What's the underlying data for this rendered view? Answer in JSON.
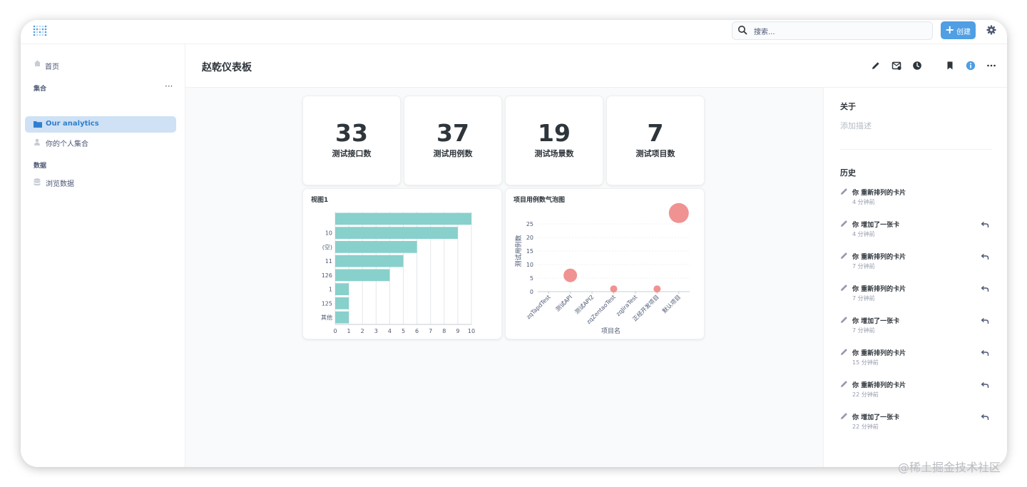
{
  "app": {
    "accent": "#509ee3"
  },
  "topbar": {
    "search_placeholder": "搜索...",
    "new_label": "创建"
  },
  "sidebar": {
    "home": "首页",
    "collections_heading": "集合",
    "collections": [
      {
        "label": "Our analytics",
        "icon": "folder-icon",
        "active": true
      },
      {
        "label": "你的个人集合",
        "icon": "person-icon",
        "active": false
      }
    ],
    "data_heading": "数据",
    "data_items": [
      {
        "label": "浏览数据",
        "icon": "database-icon"
      }
    ]
  },
  "dashboard": {
    "title": "赵乾仪表板"
  },
  "scalars": [
    {
      "value": "33",
      "label": "测试接口数"
    },
    {
      "value": "37",
      "label": "测试用例数"
    },
    {
      "value": "19",
      "label": "测试场景数"
    },
    {
      "value": "7",
      "label": "测试项目数"
    }
  ],
  "chart_data": [
    {
      "type": "bar",
      "orientation": "horizontal",
      "title": "视图1",
      "categories": [
        "",
        "10",
        "(空)",
        "11",
        "126",
        "1",
        "125",
        "其他"
      ],
      "values": [
        10,
        9,
        6,
        5,
        4,
        1,
        1,
        1
      ],
      "xlim": [
        0,
        10
      ],
      "x_ticks": [
        "0",
        "1",
        "2",
        "3",
        "4",
        "5",
        "6",
        "7",
        "8",
        "9",
        "10"
      ],
      "color": "#88d0cc",
      "grid": true
    },
    {
      "type": "scatter",
      "title": "项目用例数气泡图",
      "xlabel": "项目名",
      "ylabel": "测试用例数",
      "categories": [
        "zqTapdTest",
        "测试API",
        "测试API2",
        "zqZentaoTest",
        "zqJiraTest",
        "正经开发项目",
        "默认项目"
      ],
      "points": [
        {
          "x": "测试API",
          "y": 6,
          "size": 2
        },
        {
          "x": "zqZentaoTest",
          "y": 1,
          "size": 1
        },
        {
          "x": "正经开发项目",
          "y": 1,
          "size": 1
        },
        {
          "x": "默认项目",
          "y": 29,
          "size": 3
        }
      ],
      "ylim": [
        0,
        30
      ],
      "y_ticks": [
        "0",
        "5",
        "10",
        "15",
        "20",
        "25"
      ],
      "color": "#ef8c8c",
      "grid": true
    }
  ],
  "right_panel": {
    "about_heading": "关于",
    "description_placeholder": "添加描述",
    "history_heading": "历史",
    "history": [
      {
        "action": "你 重新排列的卡片",
        "time": "4 分钟前",
        "undo": false
      },
      {
        "action": "你 增加了一张卡",
        "time": "4 分钟前",
        "undo": true
      },
      {
        "action": "你 重新排列的卡片",
        "time": "7 分钟前",
        "undo": true
      },
      {
        "action": "你 重新排列的卡片",
        "time": "7 分钟前",
        "undo": true
      },
      {
        "action": "你 增加了一张卡",
        "time": "7 分钟前",
        "undo": true
      },
      {
        "action": "你 重新排列的卡片",
        "time": "15 分钟前",
        "undo": true
      },
      {
        "action": "你 重新排列的卡片",
        "time": "22 分钟前",
        "undo": true
      },
      {
        "action": "你 增加了一张卡",
        "time": "22 分钟前",
        "undo": true
      }
    ]
  },
  "watermark": "@稀土掘金技术社区"
}
